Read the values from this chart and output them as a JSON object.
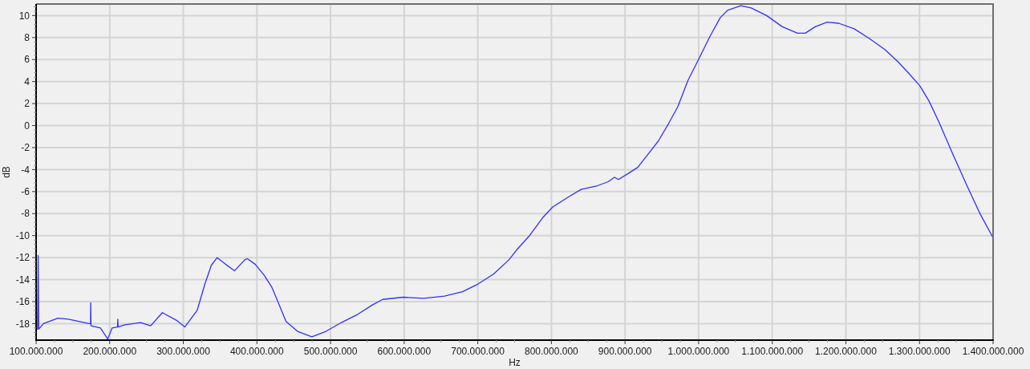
{
  "chart_data": {
    "type": "line",
    "xlabel": "Hz",
    "ylabel": "dB",
    "grid": true,
    "xlim": [
      100000000,
      1400000000
    ],
    "ylim": [
      -19.5,
      11.05
    ],
    "xticks": [
      {
        "value": 100000000,
        "label": "100.000.000"
      },
      {
        "value": 125000000,
        "label": null
      },
      {
        "value": 150000000,
        "label": null
      },
      {
        "value": 175000000,
        "label": null
      },
      {
        "value": 200000000,
        "label": "200.000.000"
      },
      {
        "value": 225000000,
        "label": null
      },
      {
        "value": 250000000,
        "label": null
      },
      {
        "value": 275000000,
        "label": null
      },
      {
        "value": 300000000,
        "label": "300.000.000"
      },
      {
        "value": 325000000,
        "label": null
      },
      {
        "value": 350000000,
        "label": null
      },
      {
        "value": 375000000,
        "label": null
      },
      {
        "value": 400000000,
        "label": "400.000.000"
      },
      {
        "value": 425000000,
        "label": null
      },
      {
        "value": 450000000,
        "label": null
      },
      {
        "value": 475000000,
        "label": null
      },
      {
        "value": 500000000,
        "label": "500.000.000"
      },
      {
        "value": 525000000,
        "label": null
      },
      {
        "value": 550000000,
        "label": null
      },
      {
        "value": 575000000,
        "label": null
      },
      {
        "value": 600000000,
        "label": "600.000.000"
      },
      {
        "value": 625000000,
        "label": null
      },
      {
        "value": 650000000,
        "label": null
      },
      {
        "value": 675000000,
        "label": null
      },
      {
        "value": 700000000,
        "label": "700.000.000"
      },
      {
        "value": 725000000,
        "label": null
      },
      {
        "value": 750000000,
        "label": null
      },
      {
        "value": 775000000,
        "label": null
      },
      {
        "value": 800000000,
        "label": "800.000.000"
      },
      {
        "value": 825000000,
        "label": null
      },
      {
        "value": 850000000,
        "label": null
      },
      {
        "value": 875000000,
        "label": null
      },
      {
        "value": 900000000,
        "label": "900.000.000"
      },
      {
        "value": 925000000,
        "label": null
      },
      {
        "value": 950000000,
        "label": null
      },
      {
        "value": 975000000,
        "label": null
      },
      {
        "value": 1000000000,
        "label": "1.000.000.000"
      },
      {
        "value": 1025000000,
        "label": null
      },
      {
        "value": 1050000000,
        "label": null
      },
      {
        "value": 1075000000,
        "label": null
      },
      {
        "value": 1100000000,
        "label": "1.100.000.000"
      },
      {
        "value": 1125000000,
        "label": null
      },
      {
        "value": 1150000000,
        "label": null
      },
      {
        "value": 1175000000,
        "label": null
      },
      {
        "value": 1200000000,
        "label": "1.200.000.000"
      },
      {
        "value": 1225000000,
        "label": null
      },
      {
        "value": 1250000000,
        "label": null
      },
      {
        "value": 1275000000,
        "label": null
      },
      {
        "value": 1300000000,
        "label": "1.300.000.000"
      },
      {
        "value": 1325000000,
        "label": null
      },
      {
        "value": 1350000000,
        "label": null
      },
      {
        "value": 1375000000,
        "label": null
      },
      {
        "value": 1400000000,
        "label": "1.400.000.000"
      }
    ],
    "yticks": [
      {
        "value": -19.2,
        "label": null
      },
      {
        "value": -18.8,
        "label": null
      },
      {
        "value": -18.4,
        "label": null
      },
      -18,
      {
        "value": -17.6,
        "label": null
      },
      {
        "value": -17.2,
        "label": null
      },
      {
        "value": -16.8,
        "label": null
      },
      {
        "value": -16.4,
        "label": null
      },
      -16,
      {
        "value": -15.6,
        "label": null
      },
      {
        "value": -15.2,
        "label": null
      },
      {
        "value": -14.8,
        "label": null
      },
      {
        "value": -14.4,
        "label": null
      },
      -14,
      {
        "value": -13.6,
        "label": null
      },
      {
        "value": -13.2,
        "label": null
      },
      {
        "value": -12.8,
        "label": null
      },
      {
        "value": -12.4,
        "label": null
      },
      -12,
      {
        "value": -11.6,
        "label": null
      },
      {
        "value": -11.2,
        "label": null
      },
      {
        "value": -10.8,
        "label": null
      },
      {
        "value": -10.4,
        "label": null
      },
      -10,
      {
        "value": -9.6,
        "label": null
      },
      {
        "value": -9.2,
        "label": null
      },
      {
        "value": -8.8,
        "label": null
      },
      {
        "value": -8.4,
        "label": null
      },
      -8,
      {
        "value": -7.6,
        "label": null
      },
      {
        "value": -7.2,
        "label": null
      },
      {
        "value": -6.8,
        "label": null
      },
      {
        "value": -6.4,
        "label": null
      },
      -6,
      {
        "value": -5.6,
        "label": null
      },
      {
        "value": -5.2,
        "label": null
      },
      {
        "value": -4.8,
        "label": null
      },
      {
        "value": -4.4,
        "label": null
      },
      -4,
      {
        "value": -3.6,
        "label": null
      },
      {
        "value": -3.2,
        "label": null
      },
      {
        "value": -2.8,
        "label": null
      },
      {
        "value": -2.4,
        "label": null
      },
      -2,
      {
        "value": -1.6,
        "label": null
      },
      {
        "value": -1.2,
        "label": null
      },
      {
        "value": -0.8,
        "label": null
      },
      {
        "value": -0.4,
        "label": null
      },
      0,
      {
        "value": 0.4,
        "label": null
      },
      {
        "value": 0.8,
        "label": null
      },
      {
        "value": 1.2,
        "label": null
      },
      {
        "value": 1.6,
        "label": null
      },
      2,
      {
        "value": 2.4,
        "label": null
      },
      {
        "value": 2.8,
        "label": null
      },
      {
        "value": 3.2,
        "label": null
      },
      {
        "value": 3.6,
        "label": null
      },
      4,
      {
        "value": 4.4,
        "label": null
      },
      {
        "value": 4.8,
        "label": null
      },
      {
        "value": 5.2,
        "label": null
      },
      {
        "value": 5.6,
        "label": null
      },
      6,
      {
        "value": 6.4,
        "label": null
      },
      {
        "value": 6.8,
        "label": null
      },
      {
        "value": 7.2,
        "label": null
      },
      {
        "value": 7.6,
        "label": null
      },
      8,
      {
        "value": 8.4,
        "label": null
      },
      {
        "value": 8.8,
        "label": null
      },
      {
        "value": 9.2,
        "label": null
      },
      {
        "value": 9.6,
        "label": null
      },
      10,
      {
        "value": 10.4,
        "label": null
      },
      {
        "value": 10.8,
        "label": null
      }
    ],
    "x": [
      100000000,
      102000000,
      102800000,
      103600000,
      110000000,
      129700000,
      143800000,
      157800000,
      171700000,
      174000000,
      174200000,
      174600000,
      187500000,
      197300000,
      203200000,
      210600000,
      211000000,
      211400000,
      220800000,
      241800000,
      255700000,
      271500000,
      290800000,
      302000000,
      306500000,
      318800000,
      329300000,
      338000000,
      346000000,
      357300000,
      369500000,
      383500000,
      387000000,
      397500000,
      409800000,
      420300000,
      429000000,
      439500000,
      455200000,
      474600000,
      493800000,
      514800000,
      535800000,
      556800000,
      570800000,
      598800000,
      626800000,
      654800000,
      679300000,
      700300000,
      721300000,
      742300000,
      752800000,
      770300000,
      787800000,
      801800000,
      822800000,
      840300000,
      861300000,
      877000000,
      885800000,
      891000000,
      903300000,
      917300000,
      934800000,
      945300000,
      959300000,
      971600000,
      985500000,
      1001300000,
      1015300000,
      1029300000,
      1039800000,
      1057400000,
      1071300000,
      1092300000,
      1113300000,
      1134300000,
      1144800000,
      1158800000,
      1174600000,
      1190300000,
      1211300000,
      1232300000,
      1253300000,
      1270800000,
      1284800000,
      1300600000,
      1313200000,
      1327200000,
      1344600000,
      1365400000,
      1382900000,
      1400000000
    ],
    "series": [
      {
        "color": "#3030ff",
        "values": [
          -18.5,
          -18.5,
          -11.8,
          -18.5,
          -18.0,
          -17.5,
          -17.6,
          -17.8,
          -18.0,
          -18.0,
          -16.1,
          -18.2,
          -18.4,
          -19.4,
          -18.4,
          -18.3,
          -17.6,
          -18.3,
          -18.1,
          -17.9,
          -18.2,
          -17.0,
          -17.7,
          -18.3,
          -17.9,
          -16.8,
          -14.4,
          -12.7,
          -12.0,
          -12.6,
          -13.2,
          -12.2,
          -12.1,
          -12.6,
          -13.6,
          -14.7,
          -16.1,
          -17.8,
          -18.7,
          -19.2,
          -18.7,
          -17.9,
          -17.2,
          -16.3,
          -15.8,
          -15.6,
          -15.7,
          -15.5,
          -15.1,
          -14.4,
          -13.5,
          -12.2,
          -11.3,
          -10.0,
          -8.4,
          -7.4,
          -6.5,
          -5.8,
          -5.5,
          -5.1,
          -4.7,
          -4.9,
          -4.4,
          -3.8,
          -2.3,
          -1.4,
          0.2,
          1.7,
          4.1,
          6.2,
          8.1,
          9.8,
          10.5,
          10.9,
          10.7,
          10.0,
          9.0,
          8.4,
          8.4,
          9.0,
          9.4,
          9.3,
          8.8,
          7.9,
          6.9,
          5.8,
          4.8,
          3.6,
          2.2,
          0.2,
          -2.5,
          -5.6,
          -8.1,
          -10.2
        ]
      }
    ]
  }
}
